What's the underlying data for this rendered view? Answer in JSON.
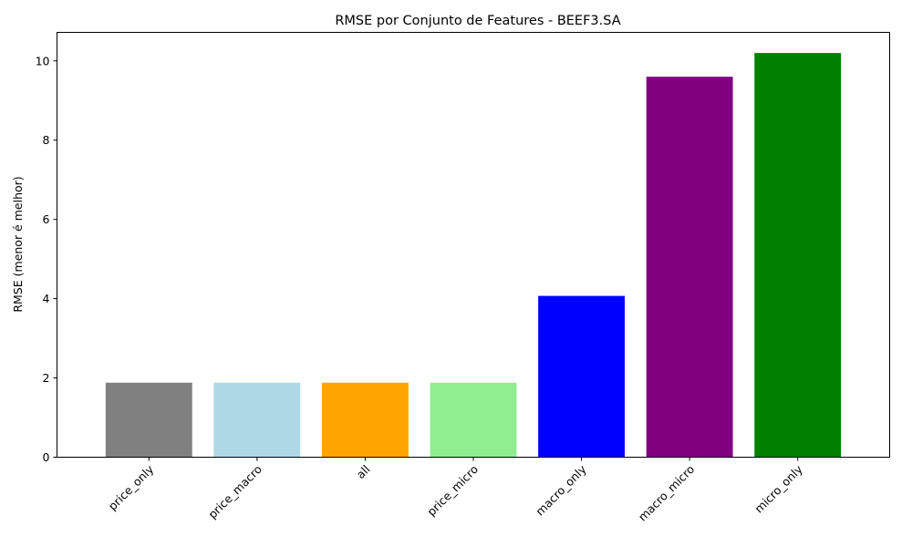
{
  "chart_data": {
    "type": "bar",
    "title": "RMSE por Conjunto de Features - BEEF3.SA",
    "xlabel": "",
    "ylabel": "RMSE (menor é melhor)",
    "ylim": [
      0,
      10.72
    ],
    "yticks": [
      0,
      2,
      4,
      6,
      8,
      10
    ],
    "grid": false,
    "categories": [
      "price_only",
      "price_macro",
      "all",
      "price_micro",
      "macro_only",
      "macro_micro",
      "micro_only"
    ],
    "values": [
      1.88,
      1.88,
      1.88,
      1.88,
      4.07,
      9.6,
      10.2
    ],
    "colors": [
      "#808080",
      "#add8e6",
      "#ffa500",
      "#90ee90",
      "#0000ff",
      "#800080",
      "#008000"
    ],
    "xtick_rotation": 45
  }
}
